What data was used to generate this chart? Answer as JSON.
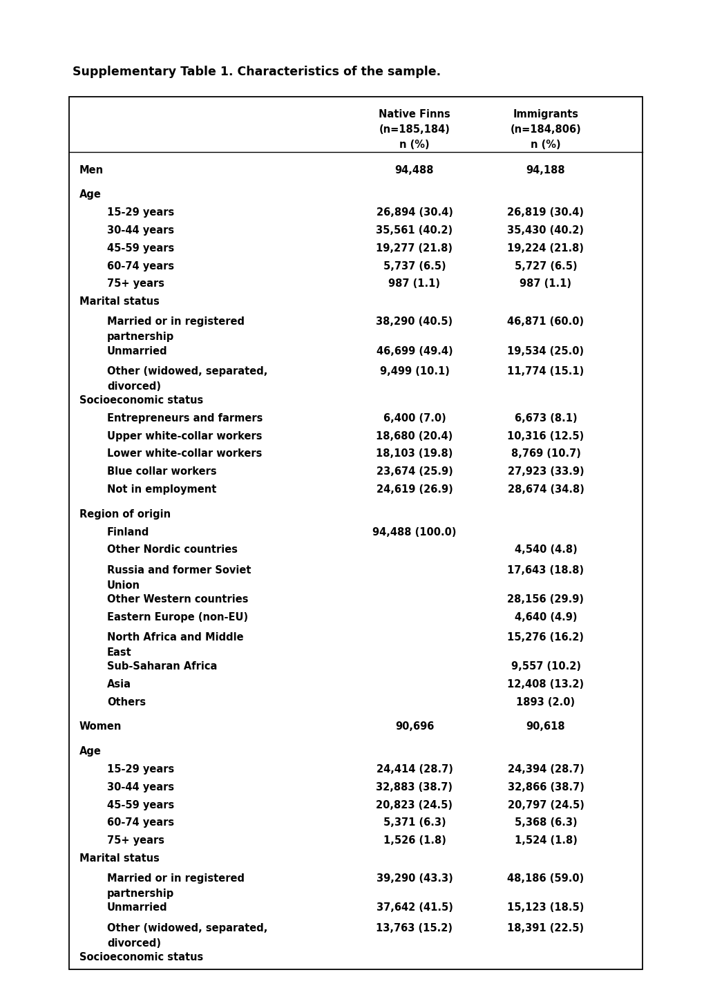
{
  "title": "Supplementary Table 1. Characteristics of the sample.",
  "rows": [
    {
      "label": "",
      "indent": 0,
      "bold": false,
      "col1": "",
      "col2": "",
      "spacer": true
    },
    {
      "label": "Men",
      "indent": 0,
      "bold": true,
      "col1": "94,488",
      "col2": "94,188",
      "spacer": false
    },
    {
      "label": "",
      "indent": 0,
      "bold": false,
      "col1": "",
      "col2": "",
      "spacer": true
    },
    {
      "label": "Age",
      "indent": 0,
      "bold": true,
      "col1": "",
      "col2": "",
      "spacer": false
    },
    {
      "label": "15-29 years",
      "indent": 1,
      "bold": true,
      "col1": "26,894 (30.4)",
      "col2": "26,819 (30.4)",
      "spacer": false
    },
    {
      "label": "30-44 years",
      "indent": 1,
      "bold": true,
      "col1": "35,561 (40.2)",
      "col2": "35,430 (40.2)",
      "spacer": false
    },
    {
      "label": "45-59 years",
      "indent": 1,
      "bold": true,
      "col1": "19,277 (21.8)",
      "col2": "19,224 (21.8)",
      "spacer": false
    },
    {
      "label": "60-74 years",
      "indent": 1,
      "bold": true,
      "col1": "5,737 (6.5)",
      "col2": "5,727 (6.5)",
      "spacer": false
    },
    {
      "label": "75+ years",
      "indent": 1,
      "bold": true,
      "col1": "987 (1.1)",
      "col2": "987 (1.1)",
      "spacer": false
    },
    {
      "label": "Marital status",
      "indent": 0,
      "bold": true,
      "col1": "",
      "col2": "",
      "spacer": false
    },
    {
      "label": "Married or in registered\npartnership",
      "indent": 1,
      "bold": true,
      "col1": "38,290 (40.5)",
      "col2": "46,871 (60.0)",
      "spacer": false
    },
    {
      "label": "Unmarried",
      "indent": 1,
      "bold": true,
      "col1": "46,699 (49.4)",
      "col2": "19,534 (25.0)",
      "spacer": false
    },
    {
      "label": "Other (widowed, separated,\ndivorced)",
      "indent": 1,
      "bold": true,
      "col1": "9,499 (10.1)",
      "col2": "11,774 (15.1)",
      "spacer": false
    },
    {
      "label": "Socioeconomic status",
      "indent": 0,
      "bold": true,
      "col1": "",
      "col2": "",
      "spacer": false
    },
    {
      "label": "Entrepreneurs and farmers",
      "indent": 1,
      "bold": true,
      "col1": "6,400 (7.0)",
      "col2": "6,673 (8.1)",
      "spacer": false
    },
    {
      "label": "Upper white-collar workers",
      "indent": 1,
      "bold": true,
      "col1": "18,680 (20.4)",
      "col2": "10,316 (12.5)",
      "spacer": false
    },
    {
      "label": "Lower white-collar workers",
      "indent": 1,
      "bold": true,
      "col1": "18,103 (19.8)",
      "col2": "8,769 (10.7)",
      "spacer": false
    },
    {
      "label": "Blue collar workers",
      "indent": 1,
      "bold": true,
      "col1": "23,674 (25.9)",
      "col2": "27,923 (33.9)",
      "spacer": false
    },
    {
      "label": "Not in employment",
      "indent": 1,
      "bold": true,
      "col1": "24,619 (26.9)",
      "col2": "28,674 (34.8)",
      "spacer": false
    },
    {
      "label": "",
      "indent": 0,
      "bold": false,
      "col1": "",
      "col2": "",
      "spacer": true
    },
    {
      "label": "Region of origin",
      "indent": 0,
      "bold": true,
      "col1": "",
      "col2": "",
      "spacer": false
    },
    {
      "label": "Finland",
      "indent": 1,
      "bold": true,
      "col1": "94,488 (100.0)",
      "col2": "",
      "spacer": false
    },
    {
      "label": "Other Nordic countries",
      "indent": 1,
      "bold": true,
      "col1": "",
      "col2": "4,540 (4.8)",
      "spacer": false
    },
    {
      "label": "Russia and former Soviet\nUnion",
      "indent": 1,
      "bold": true,
      "col1": "",
      "col2": "17,643 (18.8)",
      "spacer": false
    },
    {
      "label": "Other Western countries",
      "indent": 1,
      "bold": true,
      "col1": "",
      "col2": "28,156 (29.9)",
      "spacer": false
    },
    {
      "label": "Eastern Europe (non-EU)",
      "indent": 1,
      "bold": true,
      "col1": "",
      "col2": "4,640 (4.9)",
      "spacer": false
    },
    {
      "label": "North Africa and Middle\nEast",
      "indent": 1,
      "bold": true,
      "col1": "",
      "col2": "15,276 (16.2)",
      "spacer": false
    },
    {
      "label": "Sub-Saharan Africa",
      "indent": 1,
      "bold": true,
      "col1": "",
      "col2": "9,557 (10.2)",
      "spacer": false
    },
    {
      "label": "Asia",
      "indent": 1,
      "bold": true,
      "col1": "",
      "col2": "12,408 (13.2)",
      "spacer": false
    },
    {
      "label": "Others",
      "indent": 1,
      "bold": true,
      "col1": "",
      "col2": "1893 (2.0)",
      "spacer": false
    },
    {
      "label": "",
      "indent": 0,
      "bold": false,
      "col1": "",
      "col2": "",
      "spacer": true
    },
    {
      "label": "Women",
      "indent": 0,
      "bold": true,
      "col1": "90,696",
      "col2": "90,618",
      "spacer": false
    },
    {
      "label": "",
      "indent": 0,
      "bold": false,
      "col1": "",
      "col2": "",
      "spacer": true
    },
    {
      "label": "Age",
      "indent": 0,
      "bold": true,
      "col1": "",
      "col2": "",
      "spacer": false
    },
    {
      "label": "15-29 years",
      "indent": 1,
      "bold": true,
      "col1": "24,414 (28.7)",
      "col2": "24,394 (28.7)",
      "spacer": false
    },
    {
      "label": "30-44 years",
      "indent": 1,
      "bold": true,
      "col1": "32,883 (38.7)",
      "col2": "32,866 (38.7)",
      "spacer": false
    },
    {
      "label": "45-59 years",
      "indent": 1,
      "bold": true,
      "col1": "20,823 (24.5)",
      "col2": "20,797 (24.5)",
      "spacer": false
    },
    {
      "label": "60-74 years",
      "indent": 1,
      "bold": true,
      "col1": "5,371 (6.3)",
      "col2": "5,368 (6.3)",
      "spacer": false
    },
    {
      "label": "75+ years",
      "indent": 1,
      "bold": true,
      "col1": "1,526 (1.8)",
      "col2": "1,524 (1.8)",
      "spacer": false
    },
    {
      "label": "Marital status",
      "indent": 0,
      "bold": true,
      "col1": "",
      "col2": "",
      "spacer": false
    },
    {
      "label": "Married or in registered\npartnership",
      "indent": 1,
      "bold": true,
      "col1": "39,290 (43.3)",
      "col2": "48,186 (59.0)",
      "spacer": false
    },
    {
      "label": "Unmarried",
      "indent": 1,
      "bold": true,
      "col1": "37,642 (41.5)",
      "col2": "15,123 (18.5)",
      "spacer": false
    },
    {
      "label": "Other (widowed, separated,\ndivorced)",
      "indent": 1,
      "bold": true,
      "col1": "13,763 (15.2)",
      "col2": "18,391 (22.5)",
      "spacer": false
    },
    {
      "label": "Socioeconomic status",
      "indent": 0,
      "bold": true,
      "col1": "",
      "col2": "",
      "spacer": false
    }
  ],
  "background_color": "#ffffff",
  "border_color": "#000000",
  "text_color": "#000000",
  "font_size": 10.5,
  "title_font_size": 12.5,
  "dpi": 100,
  "fig_width": 10.2,
  "fig_height": 14.43
}
